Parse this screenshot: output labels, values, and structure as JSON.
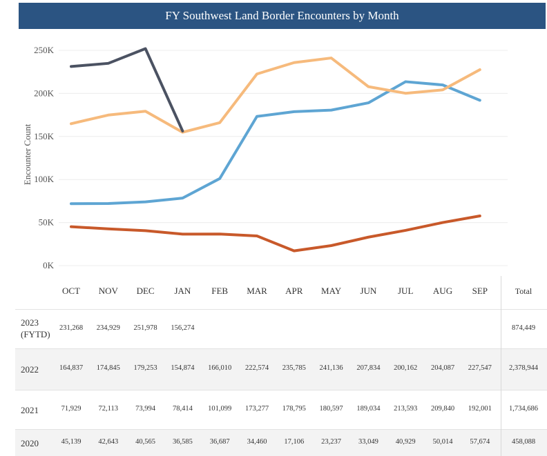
{
  "chart_data": {
    "type": "line",
    "title": "FY Southwest Land Border Encounters by Month",
    "ylabel": "Encounter Count",
    "categories": [
      "OCT",
      "NOV",
      "DEC",
      "JAN",
      "FEB",
      "MAR",
      "APR",
      "MAY",
      "JUN",
      "JUL",
      "AUG",
      "SEP"
    ],
    "ylim": [
      0,
      250000
    ],
    "yticks": [
      {
        "value": 0,
        "label": "0K"
      },
      {
        "value": 50000,
        "label": "50K"
      },
      {
        "value": 100000,
        "label": "100K"
      },
      {
        "value": 150000,
        "label": "150K"
      },
      {
        "value": 200000,
        "label": "200K"
      },
      {
        "value": 250000,
        "label": "250K"
      }
    ],
    "grid": true,
    "total_header": "Total",
    "series": [
      {
        "name": "2023 (FYTD)",
        "color": "#4b5262",
        "values": [
          231268,
          234929,
          251978,
          156274,
          null,
          null,
          null,
          null,
          null,
          null,
          null,
          null
        ],
        "value_labels": [
          "231,268",
          "234,929",
          "251,978",
          "156,274",
          null,
          null,
          null,
          null,
          null,
          null,
          null,
          null
        ],
        "total": 874449,
        "total_label": "874,449"
      },
      {
        "name": "2022",
        "color": "#f6ba7c",
        "values": [
          164837,
          174845,
          179253,
          154874,
          166010,
          222574,
          235785,
          241136,
          207834,
          200162,
          204087,
          227547
        ],
        "value_labels": [
          "164,837",
          "174,845",
          "179,253",
          "154,874",
          "166,010",
          "222,574",
          "235,785",
          "241,136",
          "207,834",
          "200,162",
          "204,087",
          "227,547"
        ],
        "total": 2378944,
        "total_label": "2,378,944"
      },
      {
        "name": "2021",
        "color": "#5ea5d3",
        "values": [
          71929,
          72113,
          73994,
          78414,
          101099,
          173277,
          178795,
          180597,
          189034,
          213593,
          209840,
          192001
        ],
        "value_labels": [
          "71,929",
          "72,113",
          "73,994",
          "78,414",
          "101,099",
          "173,277",
          "178,795",
          "180,597",
          "189,034",
          "213,593",
          "209,840",
          "192,001"
        ],
        "total": 1734686,
        "total_label": "1,734,686"
      },
      {
        "name": "2020",
        "color": "#c8592a",
        "values": [
          45139,
          42643,
          40565,
          36585,
          36687,
          34460,
          17106,
          23237,
          33049,
          40929,
          50014,
          57674
        ],
        "value_labels": [
          "45,139",
          "42,643",
          "40,565",
          "36,585",
          "36,687",
          "34,460",
          "17,106",
          "23,237",
          "33,049",
          "40,929",
          "50,014",
          "57,674"
        ],
        "total": 458088,
        "total_label": "458,088"
      }
    ]
  }
}
